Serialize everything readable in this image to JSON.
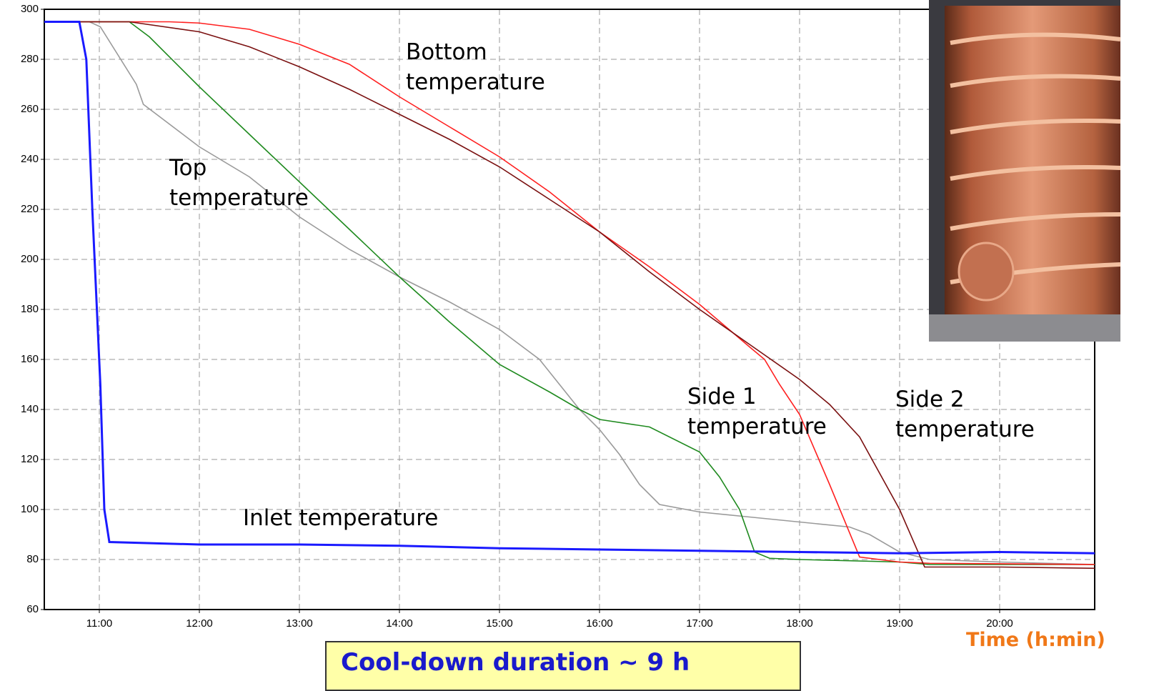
{
  "chart_data": {
    "type": "line",
    "x_label": "Time (h:min)",
    "note": "Cool-down duration ~ 9 h",
    "xlim": [
      10.45,
      20.95
    ],
    "ylim": [
      60,
      300
    ],
    "xticks": [
      {
        "value": 11,
        "label": "11:00"
      },
      {
        "value": 12,
        "label": "12:00"
      },
      {
        "value": 13,
        "label": "13:00"
      },
      {
        "value": 14,
        "label": "14:00"
      },
      {
        "value": 15,
        "label": "15:00"
      },
      {
        "value": 16,
        "label": "16:00"
      },
      {
        "value": 17,
        "label": "17:00"
      },
      {
        "value": 18,
        "label": "18:00"
      },
      {
        "value": 19,
        "label": "19:00"
      },
      {
        "value": 20,
        "label": "20:00"
      }
    ],
    "yticks": [
      60,
      80,
      100,
      120,
      140,
      160,
      180,
      200,
      220,
      240,
      260,
      280,
      300
    ],
    "grid": true,
    "series": [
      {
        "name": "Top temperature",
        "color": "#9a9a9a",
        "x": [
          10.45,
          10.9,
          11.01,
          11.37,
          11.44,
          12,
          12.5,
          13,
          13.5,
          14,
          14.5,
          15,
          15.4,
          15.6,
          15.8,
          16,
          16.2,
          16.4,
          16.6,
          17,
          17.5,
          18,
          18.5,
          18.7,
          19,
          19.3,
          20,
          20.95
        ],
        "values": [
          295,
          295,
          293,
          270,
          262,
          245,
          233,
          217,
          204,
          193,
          183,
          172,
          160,
          150,
          140,
          132,
          122,
          110,
          102,
          99,
          97,
          95,
          93,
          90,
          83,
          80,
          79,
          78
        ]
      },
      {
        "name": "Side 1 temperature",
        "color": "#1f8a1f",
        "x": [
          10.45,
          11.3,
          11.5,
          12,
          12.5,
          13,
          13.5,
          14,
          14.5,
          15,
          15.5,
          15.8,
          16,
          16.5,
          17,
          17.2,
          17.4,
          17.55,
          17.7,
          18,
          19,
          19.3,
          20.95
        ],
        "values": [
          295,
          295,
          289,
          269,
          250,
          231,
          212,
          193,
          175,
          158,
          147,
          140,
          136,
          133,
          123,
          113,
          100,
          83,
          80.5,
          80,
          79,
          78,
          78
        ]
      },
      {
        "name": "Bottom temperature",
        "color": "#ff2020",
        "x": [
          10.45,
          11.7,
          12,
          12.5,
          13,
          13.5,
          14,
          14.5,
          15,
          15.5,
          16,
          16.5,
          17,
          17.5,
          17.65,
          17.8,
          18,
          18.3,
          18.6,
          19,
          19.3,
          20.95
        ],
        "values": [
          295,
          295,
          294.5,
          292,
          286,
          278,
          265,
          253,
          241,
          227,
          211,
          197,
          182,
          165,
          160,
          150,
          138,
          110,
          81,
          79,
          78.5,
          78
        ]
      },
      {
        "name": "Side 2 temperature",
        "color": "#7a1010",
        "x": [
          10.45,
          11.3,
          12,
          12.5,
          13,
          13.5,
          14,
          14.5,
          15,
          15.5,
          16,
          16.5,
          17,
          17.5,
          18,
          18.3,
          18.6,
          19,
          19.25,
          20,
          20.95
        ],
        "values": [
          295,
          295,
          291,
          285,
          277,
          268,
          258,
          248,
          237,
          224,
          211,
          195,
          180,
          166,
          152,
          142,
          129,
          100,
          77,
          77,
          76.5
        ]
      },
      {
        "name": "Inlet temperature",
        "color": "#1a1aff",
        "x": [
          10.45,
          10.8,
          10.87,
          10.93,
          11.01,
          11.05,
          11.1,
          12,
          13,
          14,
          15,
          16,
          17,
          18,
          19,
          20,
          20.95
        ],
        "values": [
          295,
          295,
          280,
          220,
          150,
          100,
          87,
          86,
          86,
          85.5,
          84.5,
          84,
          83.5,
          83,
          82.5,
          83,
          82.5
        ]
      }
    ]
  }
}
